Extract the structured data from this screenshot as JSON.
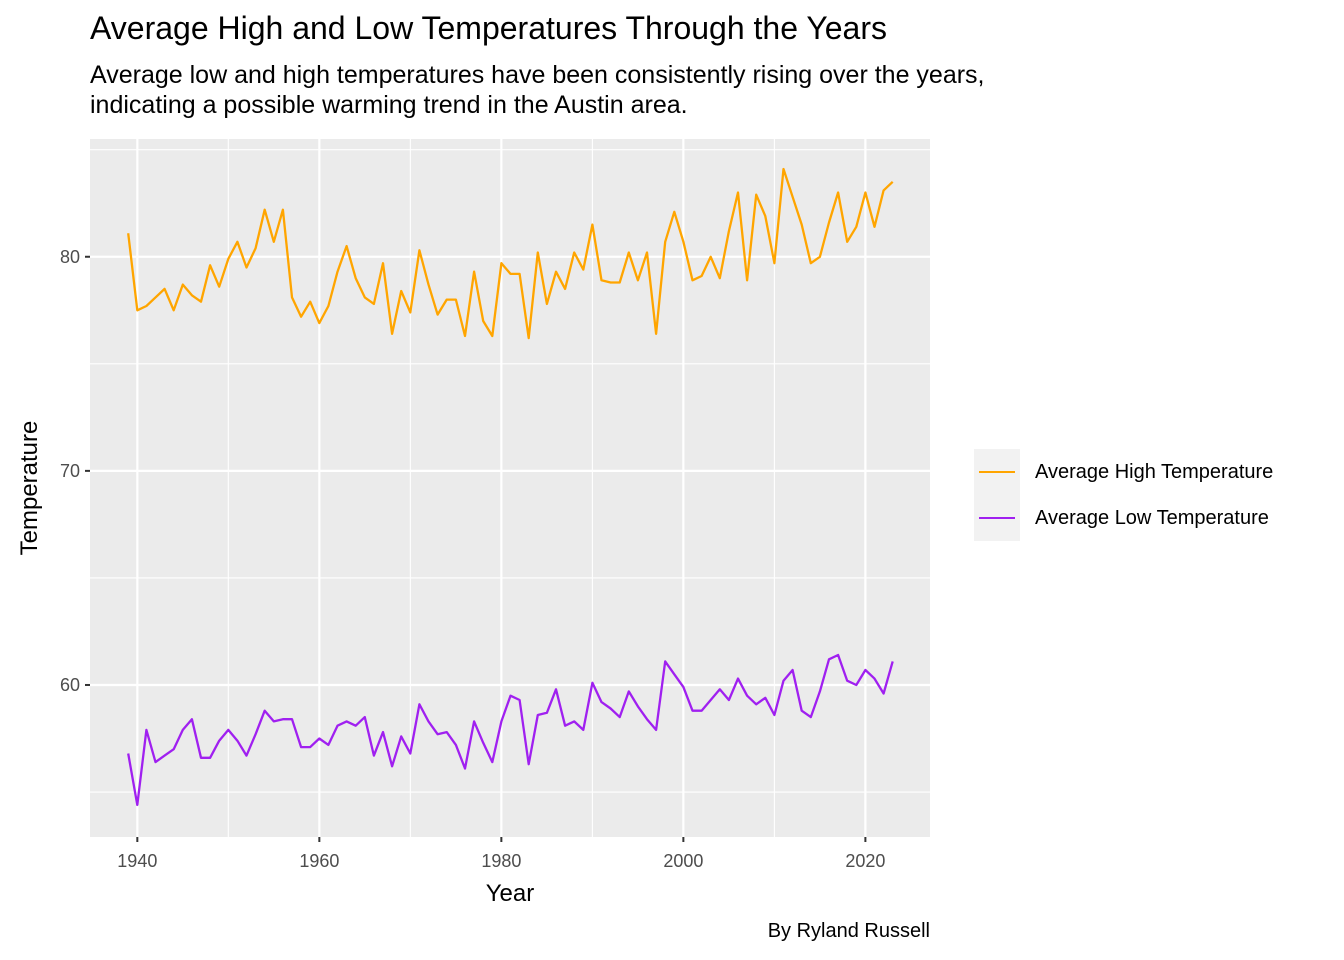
{
  "chart_data": {
    "type": "line",
    "title": "Average High and Low Temperatures Through the Years",
    "subtitle": "Average low and high temperatures have been consistently rising over the years,\nindicating a possible warming trend in the Austin area.",
    "caption": "By Ryland Russell",
    "xlabel": "Year",
    "ylabel": "Temperature",
    "xlim": [
      1934.8,
      2027.1
    ],
    "ylim": [
      52.9,
      85.5
    ],
    "x_ticks": [
      1940,
      1960,
      1980,
      2000,
      2020
    ],
    "y_ticks": [
      60,
      70,
      80
    ],
    "x_minor": [
      1950,
      1970,
      1990,
      2010
    ],
    "y_minor": [
      55,
      65,
      75,
      85
    ],
    "grid": true,
    "legend_position": "right",
    "x": [
      1939,
      1940,
      1941,
      1942,
      1943,
      1944,
      1945,
      1946,
      1947,
      1948,
      1949,
      1950,
      1951,
      1952,
      1953,
      1954,
      1955,
      1956,
      1957,
      1958,
      1959,
      1960,
      1961,
      1962,
      1963,
      1964,
      1965,
      1966,
      1967,
      1968,
      1969,
      1970,
      1971,
      1972,
      1973,
      1974,
      1975,
      1976,
      1977,
      1978,
      1979,
      1980,
      1981,
      1982,
      1983,
      1984,
      1985,
      1986,
      1987,
      1988,
      1989,
      1990,
      1991,
      1992,
      1993,
      1994,
      1995,
      1996,
      1997,
      1998,
      1999,
      2000,
      2001,
      2002,
      2003,
      2004,
      2005,
      2006,
      2007,
      2008,
      2009,
      2010,
      2011,
      2012,
      2013,
      2014,
      2015,
      2016,
      2017,
      2018,
      2019,
      2020,
      2021,
      2022,
      2023
    ],
    "series": [
      {
        "name": "Average High Temperature",
        "color": "#FFA500",
        "values": [
          81.1,
          77.5,
          77.7,
          78.1,
          78.5,
          77.5,
          78.7,
          78.2,
          77.9,
          79.6,
          78.6,
          79.9,
          80.7,
          79.5,
          80.4,
          82.2,
          80.7,
          82.2,
          78.1,
          77.2,
          77.9,
          76.9,
          77.7,
          79.3,
          80.5,
          79.0,
          78.1,
          77.8,
          79.7,
          76.4,
          78.4,
          77.4,
          80.3,
          78.7,
          77.3,
          78.0,
          78.0,
          76.3,
          79.3,
          77.0,
          76.3,
          79.7,
          79.2,
          79.2,
          76.2,
          80.2,
          77.8,
          79.3,
          78.5,
          80.2,
          79.4,
          81.5,
          78.9,
          78.8,
          78.8,
          80.2,
          78.9,
          80.2,
          76.4,
          80.7,
          82.1,
          80.7,
          78.9,
          79.1,
          80.0,
          79.0,
          81.2,
          83.0,
          78.9,
          82.9,
          81.9,
          79.7,
          84.1,
          82.8,
          81.5,
          79.7,
          80.0,
          81.6,
          83.0,
          80.7,
          81.4,
          83.0,
          81.4,
          83.1,
          83.5
        ]
      },
      {
        "name": "Average Low Temperature",
        "color": "#A020F0",
        "values": [
          56.8,
          54.4,
          57.9,
          56.4,
          56.7,
          57.0,
          57.9,
          58.4,
          56.6,
          56.6,
          57.4,
          57.9,
          57.4,
          56.7,
          57.7,
          58.8,
          58.3,
          58.4,
          58.4,
          57.1,
          57.1,
          57.5,
          57.2,
          58.1,
          58.3,
          58.1,
          58.5,
          56.7,
          57.8,
          56.2,
          57.6,
          56.8,
          59.1,
          58.3,
          57.7,
          57.8,
          57.2,
          56.1,
          58.3,
          57.3,
          56.4,
          58.3,
          59.5,
          59.3,
          56.3,
          58.6,
          58.7,
          59.8,
          58.1,
          58.3,
          57.9,
          60.1,
          59.2,
          58.9,
          58.5,
          59.7,
          59.0,
          58.4,
          57.9,
          61.1,
          60.5,
          59.9,
          58.8,
          58.8,
          59.3,
          59.8,
          59.3,
          60.3,
          59.5,
          59.1,
          59.4,
          58.6,
          60.2,
          60.7,
          58.8,
          58.5,
          59.7,
          61.2,
          61.4,
          60.2,
          60.0,
          60.7,
          60.3,
          59.6,
          61.1
        ]
      }
    ]
  }
}
